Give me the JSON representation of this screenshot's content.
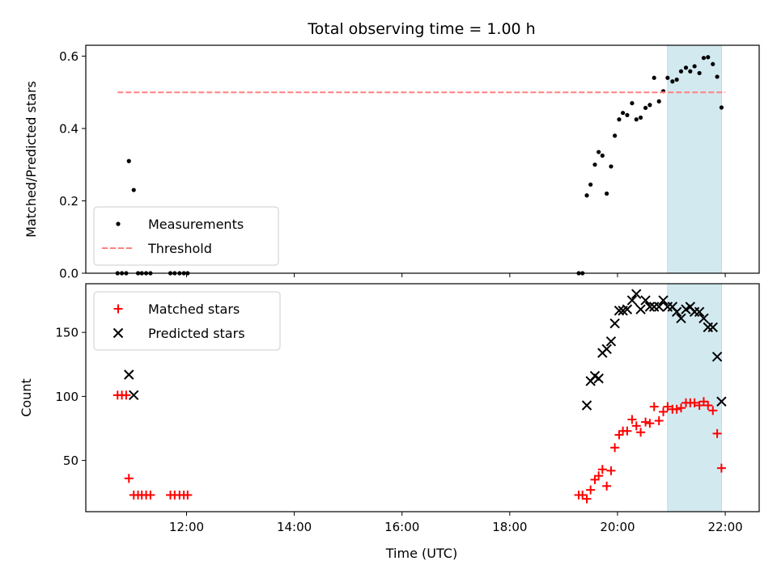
{
  "chart_data": [
    {
      "type": "scatter",
      "title": "Total observing time = 1.00 h",
      "ylabel": "Matched/Predicted stars",
      "xlabel": "",
      "ylim": [
        0,
        0.63
      ],
      "xlim": [
        10.13,
        22.63
      ],
      "yticks": [
        0.0,
        0.2,
        0.4,
        0.6
      ],
      "ytick_labels": [
        "0.0",
        "0.2",
        "0.4",
        "0.6"
      ],
      "legend_position": "lower-left",
      "shaded_interval": [
        20.93,
        21.93
      ],
      "shade_color": "#d3e9f0",
      "series": [
        {
          "name": "Measurements",
          "kind": "points",
          "color": "#000000",
          "points": [
            [
              10.72,
              0.0
            ],
            [
              10.8,
              0.0
            ],
            [
              10.88,
              0.0
            ],
            [
              10.93,
              0.31
            ],
            [
              11.02,
              0.23
            ],
            [
              11.1,
              0.0
            ],
            [
              11.17,
              0.0
            ],
            [
              11.25,
              0.0
            ],
            [
              11.33,
              0.0
            ],
            [
              11.7,
              0.0
            ],
            [
              11.78,
              0.0
            ],
            [
              11.87,
              0.0
            ],
            [
              11.95,
              0.0
            ],
            [
              12.02,
              0.0
            ],
            [
              19.28,
              0.0
            ],
            [
              19.35,
              0.0
            ],
            [
              19.43,
              0.215
            ],
            [
              19.5,
              0.245
            ],
            [
              19.58,
              0.3
            ],
            [
              19.65,
              0.335
            ],
            [
              19.72,
              0.325
            ],
            [
              19.8,
              0.22
            ],
            [
              19.88,
              0.295
            ],
            [
              19.95,
              0.38
            ],
            [
              20.03,
              0.425
            ],
            [
              20.1,
              0.443
            ],
            [
              20.18,
              0.437
            ],
            [
              20.27,
              0.47
            ],
            [
              20.35,
              0.425
            ],
            [
              20.43,
              0.43
            ],
            [
              20.52,
              0.457
            ],
            [
              20.6,
              0.465
            ],
            [
              20.68,
              0.54
            ],
            [
              20.77,
              0.475
            ],
            [
              20.85,
              0.503
            ],
            [
              20.93,
              0.54
            ],
            [
              21.02,
              0.53
            ],
            [
              21.1,
              0.535
            ],
            [
              21.18,
              0.558
            ],
            [
              21.27,
              0.568
            ],
            [
              21.35,
              0.558
            ],
            [
              21.43,
              0.572
            ],
            [
              21.52,
              0.553
            ],
            [
              21.6,
              0.595
            ],
            [
              21.68,
              0.597
            ],
            [
              21.77,
              0.578
            ],
            [
              21.85,
              0.543
            ],
            [
              21.93,
              0.458
            ]
          ]
        },
        {
          "name": "Threshold",
          "kind": "dashed-line",
          "color": "#ff8080",
          "points": [
            [
              10.72,
              0.5
            ],
            [
              22.0,
              0.5
            ]
          ]
        }
      ]
    },
    {
      "type": "scatter",
      "title": "",
      "ylabel": "Count",
      "xlabel": "Time (UTC)",
      "ylim": [
        10,
        188
      ],
      "xlim": [
        10.13,
        22.63
      ],
      "yticks": [
        50,
        100,
        150
      ],
      "ytick_labels": [
        "50",
        "100",
        "150"
      ],
      "xticks": [
        12,
        14,
        16,
        18,
        20,
        22
      ],
      "xtick_labels": [
        "12:00",
        "14:00",
        "16:00",
        "18:00",
        "20:00",
        "22:00"
      ],
      "legend_position": "upper-left",
      "shaded_interval": [
        20.93,
        21.93
      ],
      "shade_color": "#d3e9f0",
      "series": [
        {
          "name": "Matched stars",
          "kind": "plus",
          "color": "#ff0000",
          "points": [
            [
              10.72,
              101
            ],
            [
              10.8,
              101
            ],
            [
              10.88,
              101
            ],
            [
              10.93,
              36
            ],
            [
              11.02,
              23
            ],
            [
              11.1,
              23
            ],
            [
              11.17,
              23
            ],
            [
              11.25,
              23
            ],
            [
              11.33,
              23
            ],
            [
              11.7,
              23
            ],
            [
              11.78,
              23
            ],
            [
              11.87,
              23
            ],
            [
              11.95,
              23
            ],
            [
              12.02,
              23
            ],
            [
              19.28,
              23
            ],
            [
              19.35,
              23
            ],
            [
              19.43,
              20
            ],
            [
              19.5,
              27
            ],
            [
              19.58,
              35
            ],
            [
              19.65,
              38
            ],
            [
              19.72,
              43
            ],
            [
              19.8,
              30
            ],
            [
              19.88,
              42
            ],
            [
              19.95,
              60
            ],
            [
              20.03,
              70
            ],
            [
              20.1,
              73
            ],
            [
              20.18,
              73
            ],
            [
              20.27,
              82
            ],
            [
              20.35,
              77
            ],
            [
              20.43,
              72
            ],
            [
              20.52,
              80
            ],
            [
              20.6,
              79
            ],
            [
              20.68,
              92
            ],
            [
              20.77,
              81
            ],
            [
              20.85,
              88
            ],
            [
              20.93,
              92
            ],
            [
              21.02,
              90
            ],
            [
              21.1,
              90
            ],
            [
              21.18,
              91
            ],
            [
              21.27,
              95
            ],
            [
              21.35,
              95
            ],
            [
              21.43,
              95
            ],
            [
              21.52,
              93
            ],
            [
              21.6,
              96
            ],
            [
              21.68,
              93
            ],
            [
              21.77,
              89
            ],
            [
              21.85,
              71
            ],
            [
              21.93,
              44
            ]
          ]
        },
        {
          "name": "Predicted stars",
          "kind": "cross",
          "color": "#000000",
          "points": [
            [
              10.93,
              117
            ],
            [
              11.02,
              101
            ],
            [
              19.43,
              93
            ],
            [
              19.5,
              112
            ],
            [
              19.58,
              116
            ],
            [
              19.65,
              114
            ],
            [
              19.72,
              134
            ],
            [
              19.8,
              137
            ],
            [
              19.88,
              143
            ],
            [
              19.95,
              157
            ],
            [
              20.03,
              167
            ],
            [
              20.1,
              167
            ],
            [
              20.18,
              168
            ],
            [
              20.27,
              175
            ],
            [
              20.35,
              180
            ],
            [
              20.43,
              168
            ],
            [
              20.52,
              175
            ],
            [
              20.6,
              170
            ],
            [
              20.68,
              170
            ],
            [
              20.77,
              170
            ],
            [
              20.85,
              175
            ],
            [
              20.93,
              170
            ],
            [
              21.02,
              170
            ],
            [
              21.1,
              166
            ],
            [
              21.18,
              161
            ],
            [
              21.27,
              168
            ],
            [
              21.35,
              170
            ],
            [
              21.43,
              166
            ],
            [
              21.52,
              166
            ],
            [
              21.6,
              161
            ],
            [
              21.68,
              154
            ],
            [
              21.77,
              154
            ],
            [
              21.85,
              131
            ],
            [
              21.93,
              96
            ]
          ]
        }
      ]
    }
  ]
}
